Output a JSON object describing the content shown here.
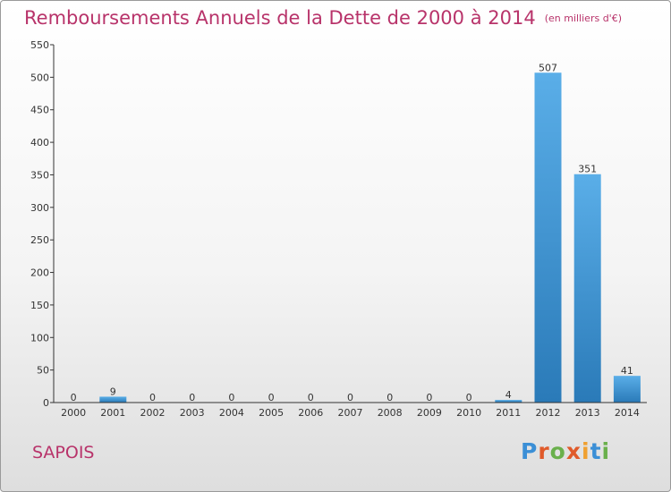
{
  "title": "Remboursements Annuels de la Dette de 2000 à 2014",
  "unit": "(en milliers d'€)",
  "place": "SAPOIS",
  "logo": {
    "text": "Proxiti",
    "colors": [
      "#3b8fd6",
      "#e05a2a",
      "#6ab04c",
      "#e05a2a",
      "#f0a030",
      "#3b8fd6",
      "#6ab04c"
    ]
  },
  "colors": {
    "title": "#b8336a",
    "bar_top": "#5aaee8",
    "bar_bottom": "#2a7ab8",
    "axis": "#333333"
  },
  "chart_data": {
    "type": "bar",
    "title": "Remboursements Annuels de la Dette de 2000 à 2014",
    "categories": [
      "2000",
      "2001",
      "2002",
      "2003",
      "2004",
      "2005",
      "2006",
      "2007",
      "2008",
      "2009",
      "2010",
      "2011",
      "2012",
      "2013",
      "2014"
    ],
    "values": [
      0,
      9,
      0,
      0,
      0,
      0,
      0,
      0,
      0,
      0,
      0,
      4,
      507,
      351,
      41
    ],
    "data_labels": [
      "0",
      "9",
      "0",
      "0",
      "0",
      "0",
      "0",
      "0",
      "0",
      "0",
      "0",
      "4",
      "507",
      "351",
      "41"
    ],
    "yticks": [
      "0",
      "50",
      "100",
      "150",
      "200",
      "250",
      "300",
      "350",
      "400",
      "450",
      "500",
      "550"
    ],
    "ylim": [
      0,
      550
    ],
    "grid": false,
    "xlabel": "",
    "ylabel": ""
  }
}
